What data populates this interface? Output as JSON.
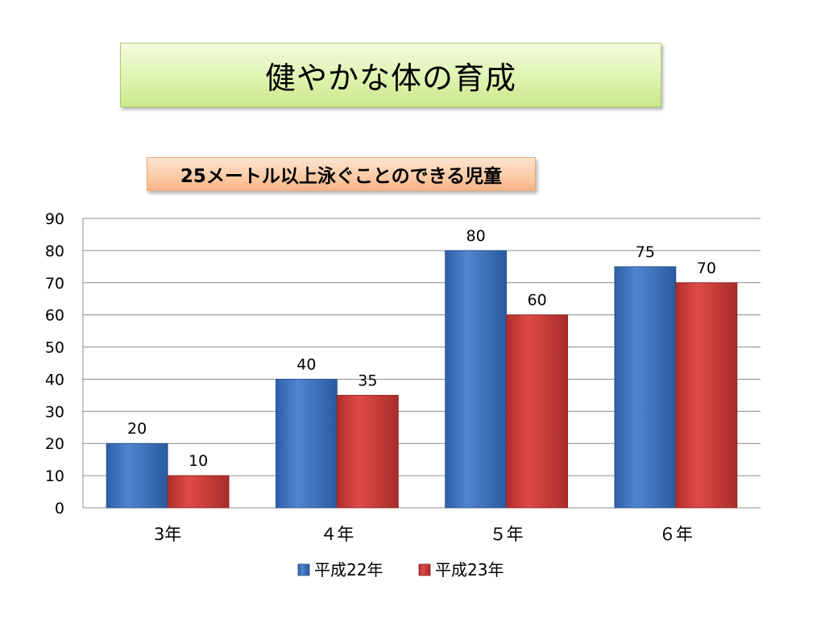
{
  "slide": {
    "title": "健やかな体の育成",
    "subtitle": "25メートル以上泳ぐことのできる児童"
  },
  "colors": {
    "series1": "#3c72bf",
    "series2": "#cf3d3a"
  },
  "chart_data": {
    "type": "bar",
    "title": "25メートル以上泳ぐことのできる児童",
    "categories": [
      "3年",
      "４年",
      "５年",
      "６年"
    ],
    "series": [
      {
        "name": "平成22年",
        "values": [
          20,
          40,
          80,
          75
        ]
      },
      {
        "name": "平成23年",
        "values": [
          10,
          35,
          60,
          70
        ]
      }
    ],
    "xlabel": "",
    "ylabel": "",
    "ylim": [
      0,
      90
    ],
    "yticks": [
      0,
      10,
      20,
      30,
      40,
      50,
      60,
      70,
      80,
      90
    ],
    "grid": true,
    "data_labels": true,
    "legend": "bottom"
  }
}
